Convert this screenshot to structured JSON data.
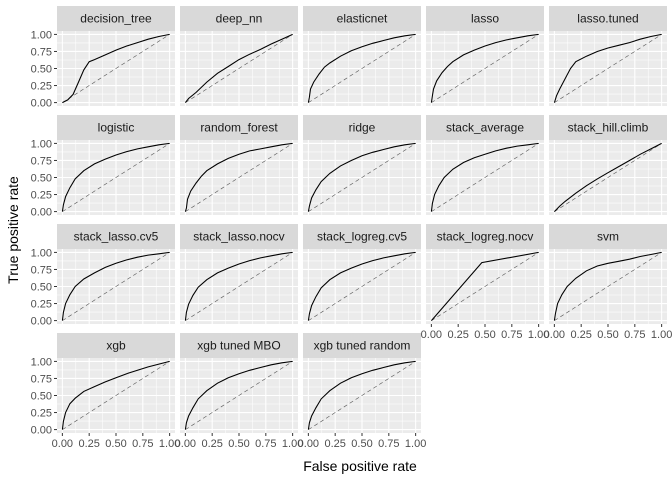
{
  "chart_data": {
    "type": "line",
    "layout": "faceted",
    "xlabel": "False positive rate",
    "ylabel": "True positive rate",
    "xlim": [
      0,
      1
    ],
    "ylim": [
      0,
      1
    ],
    "x_ticks": [
      "0.00",
      "0.25",
      "0.50",
      "0.75",
      "1.00"
    ],
    "y_ticks": [
      "0.00",
      "0.25",
      "0.50",
      "0.75",
      "1.00"
    ],
    "grid": true,
    "reference_line": "dashed diagonal y = x",
    "panels": [
      {
        "name": "decision_tree",
        "points": [
          [
            0,
            0
          ],
          [
            0.05,
            0.04
          ],
          [
            0.1,
            0.12
          ],
          [
            0.15,
            0.3
          ],
          [
            0.2,
            0.48
          ],
          [
            0.25,
            0.6
          ],
          [
            0.3,
            0.63
          ],
          [
            0.4,
            0.7
          ],
          [
            0.5,
            0.77
          ],
          [
            0.6,
            0.83
          ],
          [
            0.7,
            0.88
          ],
          [
            0.8,
            0.93
          ],
          [
            0.9,
            0.97
          ],
          [
            1,
            1
          ]
        ]
      },
      {
        "name": "deep_nn",
        "points": [
          [
            0,
            0
          ],
          [
            0.03,
            0.06
          ],
          [
            0.1,
            0.15
          ],
          [
            0.2,
            0.3
          ],
          [
            0.3,
            0.43
          ],
          [
            0.4,
            0.53
          ],
          [
            0.5,
            0.63
          ],
          [
            0.6,
            0.71
          ],
          [
            0.7,
            0.78
          ],
          [
            0.8,
            0.86
          ],
          [
            0.9,
            0.93
          ],
          [
            1,
            1
          ]
        ]
      },
      {
        "name": "elasticnet",
        "points": [
          [
            0,
            0
          ],
          [
            0.01,
            0.08
          ],
          [
            0.02,
            0.2
          ],
          [
            0.05,
            0.3
          ],
          [
            0.1,
            0.42
          ],
          [
            0.15,
            0.52
          ],
          [
            0.2,
            0.58
          ],
          [
            0.3,
            0.68
          ],
          [
            0.4,
            0.76
          ],
          [
            0.5,
            0.82
          ],
          [
            0.6,
            0.87
          ],
          [
            0.7,
            0.91
          ],
          [
            0.8,
            0.95
          ],
          [
            0.9,
            0.98
          ],
          [
            1,
            1
          ]
        ]
      },
      {
        "name": "lasso",
        "points": [
          [
            0,
            0
          ],
          [
            0.01,
            0.1
          ],
          [
            0.02,
            0.2
          ],
          [
            0.05,
            0.32
          ],
          [
            0.1,
            0.44
          ],
          [
            0.15,
            0.53
          ],
          [
            0.2,
            0.6
          ],
          [
            0.3,
            0.7
          ],
          [
            0.4,
            0.77
          ],
          [
            0.5,
            0.83
          ],
          [
            0.6,
            0.88
          ],
          [
            0.7,
            0.92
          ],
          [
            0.8,
            0.95
          ],
          [
            0.9,
            0.98
          ],
          [
            1,
            1
          ]
        ]
      },
      {
        "name": "lasso.tuned",
        "points": [
          [
            0,
            0
          ],
          [
            0.02,
            0.1
          ],
          [
            0.05,
            0.2
          ],
          [
            0.1,
            0.35
          ],
          [
            0.15,
            0.5
          ],
          [
            0.2,
            0.6
          ],
          [
            0.3,
            0.68
          ],
          [
            0.4,
            0.75
          ],
          [
            0.5,
            0.8
          ],
          [
            0.6,
            0.84
          ],
          [
            0.7,
            0.88
          ],
          [
            0.8,
            0.93
          ],
          [
            0.9,
            0.97
          ],
          [
            1,
            1
          ]
        ]
      },
      {
        "name": "logistic",
        "points": [
          [
            0,
            0
          ],
          [
            0.01,
            0.1
          ],
          [
            0.03,
            0.22
          ],
          [
            0.07,
            0.35
          ],
          [
            0.12,
            0.48
          ],
          [
            0.2,
            0.6
          ],
          [
            0.3,
            0.7
          ],
          [
            0.4,
            0.77
          ],
          [
            0.5,
            0.83
          ],
          [
            0.6,
            0.88
          ],
          [
            0.7,
            0.92
          ],
          [
            0.8,
            0.95
          ],
          [
            0.9,
            0.98
          ],
          [
            1,
            1
          ]
        ]
      },
      {
        "name": "random_forest",
        "points": [
          [
            0,
            0
          ],
          [
            0.01,
            0.05
          ],
          [
            0.02,
            0.18
          ],
          [
            0.05,
            0.3
          ],
          [
            0.1,
            0.42
          ],
          [
            0.15,
            0.52
          ],
          [
            0.2,
            0.6
          ],
          [
            0.3,
            0.7
          ],
          [
            0.4,
            0.78
          ],
          [
            0.5,
            0.84
          ],
          [
            0.6,
            0.89
          ],
          [
            0.7,
            0.92
          ],
          [
            0.8,
            0.95
          ],
          [
            0.9,
            0.98
          ],
          [
            1,
            1
          ]
        ]
      },
      {
        "name": "ridge",
        "points": [
          [
            0,
            0
          ],
          [
            0.01,
            0.08
          ],
          [
            0.03,
            0.2
          ],
          [
            0.07,
            0.32
          ],
          [
            0.12,
            0.44
          ],
          [
            0.2,
            0.56
          ],
          [
            0.3,
            0.67
          ],
          [
            0.4,
            0.75
          ],
          [
            0.5,
            0.82
          ],
          [
            0.6,
            0.87
          ],
          [
            0.7,
            0.91
          ],
          [
            0.8,
            0.95
          ],
          [
            0.9,
            0.98
          ],
          [
            1,
            1
          ]
        ]
      },
      {
        "name": "stack_average",
        "points": [
          [
            0,
            0
          ],
          [
            0.01,
            0.12
          ],
          [
            0.03,
            0.25
          ],
          [
            0.07,
            0.38
          ],
          [
            0.12,
            0.5
          ],
          [
            0.2,
            0.62
          ],
          [
            0.3,
            0.72
          ],
          [
            0.4,
            0.79
          ],
          [
            0.5,
            0.84
          ],
          [
            0.6,
            0.89
          ],
          [
            0.7,
            0.93
          ],
          [
            0.8,
            0.96
          ],
          [
            0.9,
            0.98
          ],
          [
            1,
            1
          ]
        ]
      },
      {
        "name": "stack_hill.climb",
        "points": [
          [
            0,
            0
          ],
          [
            0.05,
            0.08
          ],
          [
            0.1,
            0.15
          ],
          [
            0.2,
            0.27
          ],
          [
            0.3,
            0.38
          ],
          [
            0.4,
            0.48
          ],
          [
            0.5,
            0.57
          ],
          [
            0.6,
            0.66
          ],
          [
            0.7,
            0.75
          ],
          [
            0.8,
            0.84
          ],
          [
            0.9,
            0.92
          ],
          [
            1,
            1
          ]
        ]
      },
      {
        "name": "stack_lasso.cv5",
        "points": [
          [
            0,
            0
          ],
          [
            0.01,
            0.12
          ],
          [
            0.03,
            0.25
          ],
          [
            0.07,
            0.38
          ],
          [
            0.12,
            0.5
          ],
          [
            0.2,
            0.61
          ],
          [
            0.3,
            0.7
          ],
          [
            0.4,
            0.78
          ],
          [
            0.5,
            0.84
          ],
          [
            0.6,
            0.89
          ],
          [
            0.7,
            0.93
          ],
          [
            0.8,
            0.96
          ],
          [
            0.9,
            0.98
          ],
          [
            1,
            1
          ]
        ]
      },
      {
        "name": "stack_lasso.nocv",
        "points": [
          [
            0,
            0
          ],
          [
            0.01,
            0.12
          ],
          [
            0.03,
            0.24
          ],
          [
            0.07,
            0.37
          ],
          [
            0.12,
            0.49
          ],
          [
            0.2,
            0.6
          ],
          [
            0.3,
            0.7
          ],
          [
            0.4,
            0.77
          ],
          [
            0.5,
            0.83
          ],
          [
            0.6,
            0.88
          ],
          [
            0.7,
            0.92
          ],
          [
            0.8,
            0.95
          ],
          [
            0.9,
            0.98
          ],
          [
            1,
            1
          ]
        ]
      },
      {
        "name": "stack_logreg.cv5",
        "points": [
          [
            0,
            0
          ],
          [
            0.01,
            0.1
          ],
          [
            0.03,
            0.22
          ],
          [
            0.07,
            0.35
          ],
          [
            0.12,
            0.48
          ],
          [
            0.2,
            0.6
          ],
          [
            0.3,
            0.7
          ],
          [
            0.4,
            0.77
          ],
          [
            0.5,
            0.83
          ],
          [
            0.6,
            0.88
          ],
          [
            0.7,
            0.92
          ],
          [
            0.8,
            0.95
          ],
          [
            0.9,
            0.98
          ],
          [
            1,
            1
          ]
        ]
      },
      {
        "name": "stack_logreg.nocv",
        "points": [
          [
            0,
            0
          ],
          [
            0.47,
            0.85
          ],
          [
            1,
            1
          ]
        ]
      },
      {
        "name": "svm",
        "points": [
          [
            0,
            0
          ],
          [
            0.01,
            0.1
          ],
          [
            0.03,
            0.25
          ],
          [
            0.07,
            0.38
          ],
          [
            0.12,
            0.5
          ],
          [
            0.2,
            0.62
          ],
          [
            0.3,
            0.73
          ],
          [
            0.4,
            0.8
          ],
          [
            0.5,
            0.84
          ],
          [
            0.6,
            0.87
          ],
          [
            0.7,
            0.9
          ],
          [
            0.8,
            0.94
          ],
          [
            0.9,
            0.97
          ],
          [
            1,
            1
          ]
        ]
      },
      {
        "name": "xgb",
        "points": [
          [
            0,
            0
          ],
          [
            0.01,
            0.12
          ],
          [
            0.03,
            0.25
          ],
          [
            0.07,
            0.38
          ],
          [
            0.12,
            0.46
          ],
          [
            0.2,
            0.56
          ],
          [
            0.3,
            0.63
          ],
          [
            0.4,
            0.7
          ],
          [
            0.5,
            0.76
          ],
          [
            0.6,
            0.82
          ],
          [
            0.7,
            0.87
          ],
          [
            0.8,
            0.92
          ],
          [
            0.9,
            0.96
          ],
          [
            1,
            1
          ]
        ]
      },
      {
        "name": "xgb tuned MBO",
        "points": [
          [
            0,
            0
          ],
          [
            0.01,
            0.1
          ],
          [
            0.03,
            0.2
          ],
          [
            0.07,
            0.32
          ],
          [
            0.12,
            0.45
          ],
          [
            0.2,
            0.57
          ],
          [
            0.3,
            0.68
          ],
          [
            0.4,
            0.76
          ],
          [
            0.5,
            0.82
          ],
          [
            0.6,
            0.87
          ],
          [
            0.7,
            0.91
          ],
          [
            0.8,
            0.95
          ],
          [
            0.9,
            0.98
          ],
          [
            1,
            1
          ]
        ]
      },
      {
        "name": "xgb tuned random",
        "points": [
          [
            0,
            0
          ],
          [
            0.01,
            0.1
          ],
          [
            0.03,
            0.2
          ],
          [
            0.07,
            0.32
          ],
          [
            0.12,
            0.45
          ],
          [
            0.2,
            0.57
          ],
          [
            0.3,
            0.68
          ],
          [
            0.4,
            0.76
          ],
          [
            0.5,
            0.82
          ],
          [
            0.6,
            0.87
          ],
          [
            0.7,
            0.91
          ],
          [
            0.8,
            0.95
          ],
          [
            0.9,
            0.98
          ],
          [
            1,
            1
          ]
        ]
      }
    ]
  }
}
